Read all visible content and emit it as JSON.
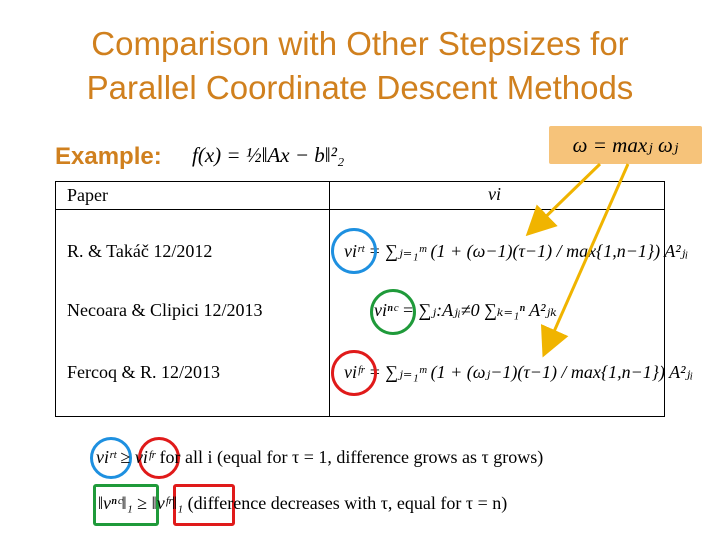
{
  "slide": {
    "title_line1": "Comparison with Other Stepsizes for",
    "title_line2": "Parallel Coordinate Descent Methods",
    "example_label": "Example:",
    "example_formula": "f(x) = ½‖Ax − b‖²₂",
    "omega_formula": "ω = maxⱼ ωⱼ"
  },
  "table": {
    "header_paper": "Paper",
    "header_vi": "vi",
    "rows": [
      {
        "paper": "R. & Takáč 12/2012",
        "formula": "viʳᵗ = ∑ⱼ₌₁ᵐ (1 + (ω−1)(τ−1) / max{1,n−1}) A²ⱼᵢ"
      },
      {
        "paper": "Necoara & Clipici 12/2013",
        "formula": "viⁿᶜ = ∑ⱼ:Aⱼᵢ≠0 ∑ₖ₌₁ⁿ A²ⱼₖ"
      },
      {
        "paper": "Fercoq & R. 12/2013",
        "formula": "viᶠʳ = ∑ⱼ₌₁ᵐ (1 + (ωⱼ−1)(τ−1) / max{1,n−1}) A²ⱼᵢ"
      }
    ]
  },
  "bottom": {
    "line1_lhs": "viʳᵗ",
    "line1_rel": "≥",
    "line1_rhs": "viᶠʳ",
    "line1_text": "for all i (equal for τ = 1, difference grows as τ grows)",
    "line2_lhs": "‖vⁿᶜ‖₁",
    "line2_rel": "≥",
    "line2_rhs": "‖vᶠʳ‖₁",
    "line2_text": "(difference decreases with τ, equal for τ = n)"
  },
  "colors": {
    "title": "#d0801e",
    "highlight": "#f6c37a",
    "arrow": "#f0b400",
    "blue": "#1e90e0",
    "green": "#1f9a3a",
    "red": "#e01a1a"
  }
}
